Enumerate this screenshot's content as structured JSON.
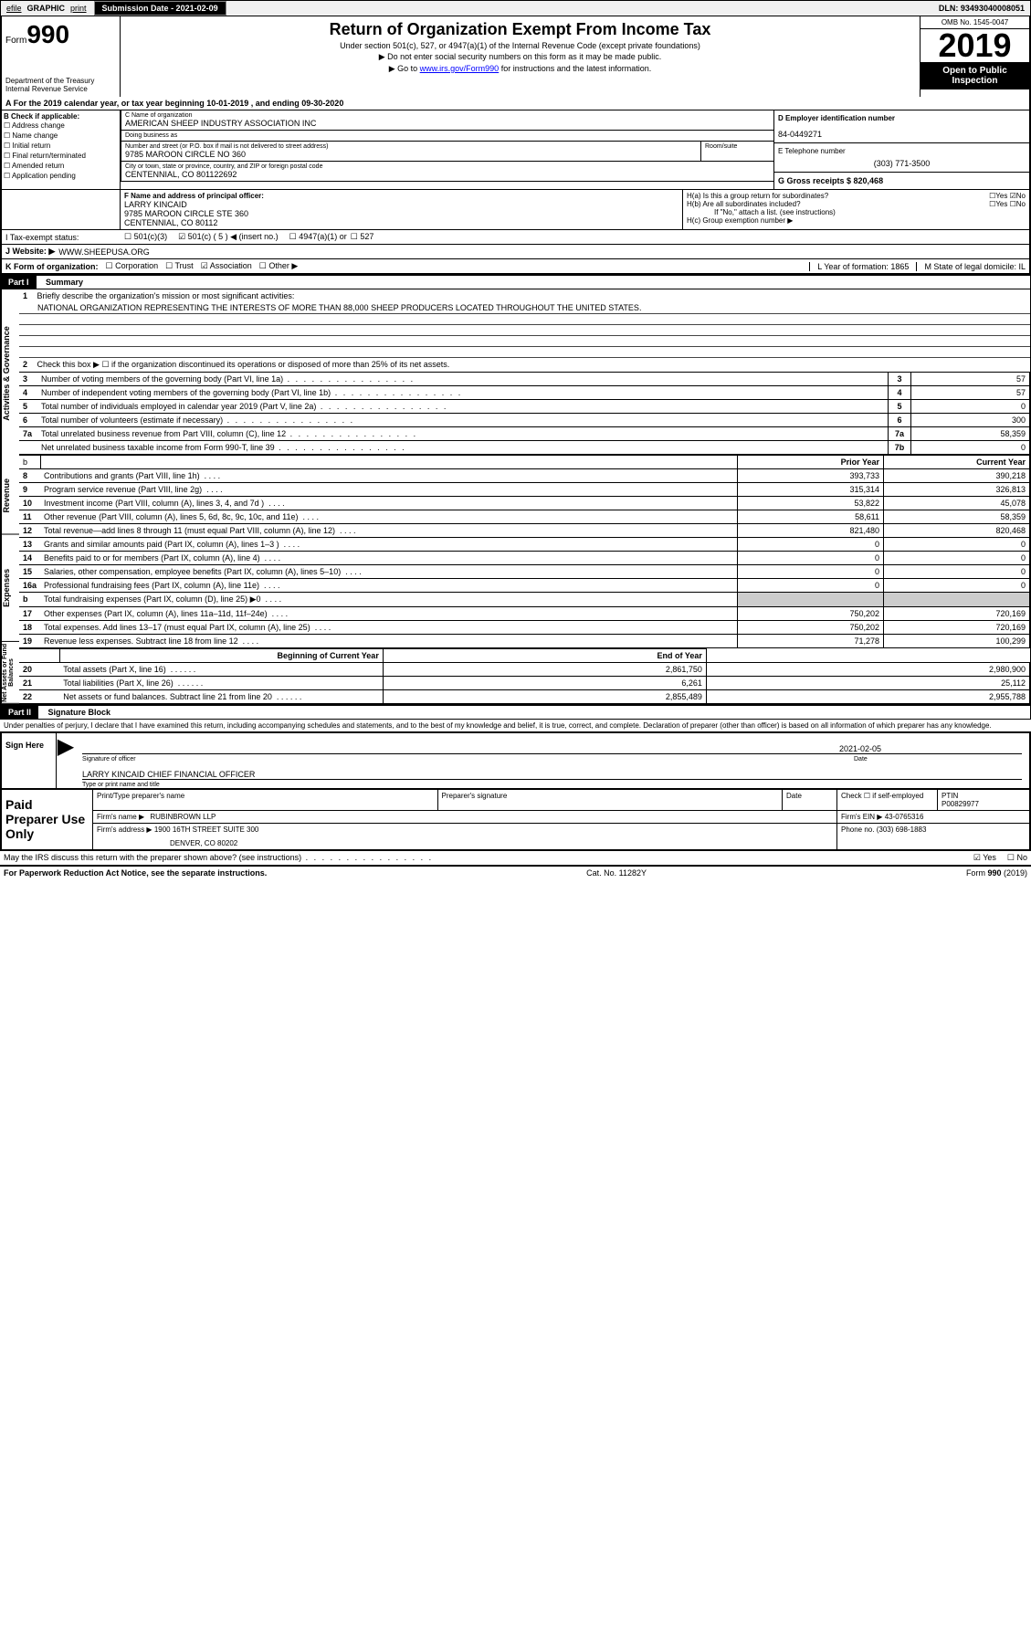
{
  "topbar": {
    "efile": "efile",
    "graphic": "GRAPHIC",
    "print": "print",
    "submission": "Submission Date - 2021-02-09",
    "dln": "DLN: 93493040008051"
  },
  "header": {
    "form_word": "Form",
    "form_number": "990",
    "dept": "Department of the Treasury\nInternal Revenue Service",
    "title": "Return of Organization Exempt From Income Tax",
    "subtitle": "Under section 501(c), 527, or 4947(a)(1) of the Internal Revenue Code (except private foundations)",
    "note1": "▶ Do not enter social security numbers on this form as it may be made public.",
    "note2_prefix": "▶ Go to ",
    "note2_link": "www.irs.gov/Form990",
    "note2_suffix": " for instructions and the latest information.",
    "omb": "OMB No. 1545-0047",
    "year": "2019",
    "inspection": "Open to Public Inspection"
  },
  "line_a": "A For the 2019 calendar year, or tax year beginning 10-01-2019   , and ending 09-30-2020",
  "col_b": {
    "title": "B Check if applicable:",
    "items": [
      "Address change",
      "Name change",
      "Initial return",
      "Final return/terminated",
      "Amended return",
      "Application pending"
    ]
  },
  "org": {
    "c_label": "C Name of organization",
    "name": "AMERICAN SHEEP INDUSTRY ASSOCIATION INC",
    "dba_label": "Doing business as",
    "dba": "",
    "addr_label": "Number and street (or P.O. box if mail is not delivered to street address)",
    "room_label": "Room/suite",
    "addr": "9785 MAROON CIRCLE NO 360",
    "city_label": "City or town, state or province, country, and ZIP or foreign postal code",
    "city": "CENTENNIAL, CO  801122692"
  },
  "d": {
    "label": "D Employer identification number",
    "value": "84-0449271"
  },
  "e": {
    "label": "E Telephone number",
    "value": "(303) 771-3500"
  },
  "g": {
    "label": "G Gross receipts $ 820,468"
  },
  "f": {
    "label": "F  Name and address of principal officer:",
    "name": "LARRY KINCAID",
    "addr1": "9785 MAROON CIRCLE STE 360",
    "addr2": "CENTENNIAL, CO  80112"
  },
  "h": {
    "a": "H(a)  Is this a group return for subordinates?",
    "a_yes": "Yes",
    "a_no": "No",
    "b": "H(b)  Are all subordinates included?",
    "b_note": "If \"No,\" attach a list. (see instructions)",
    "c": "H(c)  Group exemption number ▶"
  },
  "i": {
    "label": "I  Tax-exempt status:",
    "opt1": "501(c)(3)",
    "opt2": "501(c) ( 5 ) ◀ (insert no.)",
    "opt3": "4947(a)(1) or",
    "opt4": "527"
  },
  "j": {
    "label": "J   Website: ▶",
    "value": "WWW.SHEEPUSA.ORG"
  },
  "k": {
    "label": "K Form of organization:",
    "opts": [
      "Corporation",
      "Trust",
      "Association",
      "Other ▶"
    ]
  },
  "l": {
    "label": "L Year of formation: 1865"
  },
  "m": {
    "label": "M State of legal domicile: IL"
  },
  "part1": {
    "title": "Part I",
    "subtitle": "Summary",
    "vert1": "Activities & Governance",
    "vert2": "Revenue",
    "vert3": "Expenses",
    "vert4": "Net Assets or Fund Balances",
    "line1": "Briefly describe the organization's mission or most significant activities:",
    "mission": "NATIONAL ORGANIZATION REPRESENTING THE INTERESTS OF MORE THAN 88,000 SHEEP PRODUCERS LOCATED THROUGHOUT THE UNITED STATES.",
    "line2": "Check this box ▶ ☐  if the organization discontinued its operations or disposed of more than 25% of its net assets.",
    "rows_gov": [
      {
        "n": "3",
        "t": "Number of voting members of the governing body (Part VI, line 1a)",
        "bn": "3",
        "v": "57"
      },
      {
        "n": "4",
        "t": "Number of independent voting members of the governing body (Part VI, line 1b)",
        "bn": "4",
        "v": "57"
      },
      {
        "n": "5",
        "t": "Total number of individuals employed in calendar year 2019 (Part V, line 2a)",
        "bn": "5",
        "v": "0"
      },
      {
        "n": "6",
        "t": "Total number of volunteers (estimate if necessary)",
        "bn": "6",
        "v": "300"
      },
      {
        "n": "7a",
        "t": "Total unrelated business revenue from Part VIII, column (C), line 12",
        "bn": "7a",
        "v": "58,359"
      },
      {
        "n": "",
        "t": "Net unrelated business taxable income from Form 990-T, line 39",
        "bn": "7b",
        "v": "0"
      }
    ],
    "col_prior": "Prior Year",
    "col_curr": "Current Year",
    "rows_rev": [
      {
        "n": "8",
        "t": "Contributions and grants (Part VIII, line 1h)",
        "p": "393,733",
        "c": "390,218"
      },
      {
        "n": "9",
        "t": "Program service revenue (Part VIII, line 2g)",
        "p": "315,314",
        "c": "326,813"
      },
      {
        "n": "10",
        "t": "Investment income (Part VIII, column (A), lines 3, 4, and 7d )",
        "p": "53,822",
        "c": "45,078"
      },
      {
        "n": "11",
        "t": "Other revenue (Part VIII, column (A), lines 5, 6d, 8c, 9c, 10c, and 11e)",
        "p": "58,611",
        "c": "58,359"
      },
      {
        "n": "12",
        "t": "Total revenue—add lines 8 through 11 (must equal Part VIII, column (A), line 12)",
        "p": "821,480",
        "c": "820,468"
      }
    ],
    "rows_exp": [
      {
        "n": "13",
        "t": "Grants and similar amounts paid (Part IX, column (A), lines 1–3 )",
        "p": "0",
        "c": "0"
      },
      {
        "n": "14",
        "t": "Benefits paid to or for members (Part IX, column (A), line 4)",
        "p": "0",
        "c": "0"
      },
      {
        "n": "15",
        "t": "Salaries, other compensation, employee benefits (Part IX, column (A), lines 5–10)",
        "p": "0",
        "c": "0"
      },
      {
        "n": "16a",
        "t": "Professional fundraising fees (Part IX, column (A), line 11e)",
        "p": "0",
        "c": "0"
      },
      {
        "n": "b",
        "t": "Total fundraising expenses (Part IX, column (D), line 25) ▶0",
        "p": "",
        "c": "",
        "shaded": true
      },
      {
        "n": "17",
        "t": "Other expenses (Part IX, column (A), lines 11a–11d, 11f–24e)",
        "p": "750,202",
        "c": "720,169"
      },
      {
        "n": "18",
        "t": "Total expenses. Add lines 13–17 (must equal Part IX, column (A), line 25)",
        "p": "750,202",
        "c": "720,169"
      },
      {
        "n": "19",
        "t": "Revenue less expenses. Subtract line 18 from line 12",
        "p": "71,278",
        "c": "100,299"
      }
    ],
    "col_begin": "Beginning of Current Year",
    "col_end": "End of Year",
    "rows_net": [
      {
        "n": "20",
        "t": "Total assets (Part X, line 16)",
        "p": "2,861,750",
        "c": "2,980,900"
      },
      {
        "n": "21",
        "t": "Total liabilities (Part X, line 26)",
        "p": "6,261",
        "c": "25,112"
      },
      {
        "n": "22",
        "t": "Net assets or fund balances. Subtract line 21 from line 20",
        "p": "2,855,489",
        "c": "2,955,788"
      }
    ]
  },
  "part2": {
    "title": "Part II",
    "subtitle": "Signature Block",
    "penalty": "Under penalties of perjury, I declare that I have examined this return, including accompanying schedules and statements, and to the best of my knowledge and belief, it is true, correct, and complete. Declaration of preparer (other than officer) is based on all information of which preparer has any knowledge."
  },
  "sign": {
    "label": "Sign Here",
    "sig_label": "Signature of officer",
    "date_label": "Date",
    "date": "2021-02-05",
    "name": "LARRY KINCAID  CHIEF FINANCIAL OFFICER",
    "name_label": "Type or print name and title"
  },
  "paid": {
    "label": "Paid Preparer Use Only",
    "h1": "Print/Type preparer's name",
    "h2": "Preparer's signature",
    "h3": "Date",
    "h4_pre": "Check ☐ if self-employed",
    "h5": "PTIN",
    "ptin": "P00829977",
    "firm_label": "Firm's name   ▶",
    "firm": "RUBINBROWN LLP",
    "ein_label": "Firm's EIN ▶",
    "ein": "43-0765316",
    "addr_label": "Firm's address ▶",
    "addr1": "1900 16TH STREET SUITE 300",
    "addr2": "DENVER, CO  80202",
    "phone_label": "Phone no.",
    "phone": "(303) 698-1883"
  },
  "discuss": {
    "text": "May the IRS discuss this return with the preparer shown above? (see instructions)",
    "yes": "Yes",
    "no": "No"
  },
  "footer": {
    "left": "For Paperwork Reduction Act Notice, see the separate instructions.",
    "mid": "Cat. No. 11282Y",
    "right": "Form 990 (2019)"
  }
}
